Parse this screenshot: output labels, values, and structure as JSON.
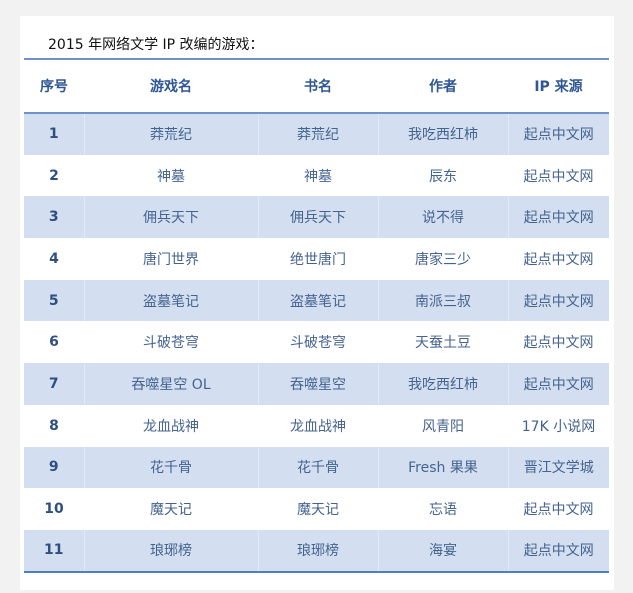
{
  "title": "2015 年网络文学 IP 改编的游戏：",
  "colors": {
    "header_text": "#2e5694",
    "row_shade": "#d3dff0",
    "rule": "#6f93c6"
  },
  "headers": [
    "序号",
    "游戏名",
    "书名",
    "作者",
    "IP 来源"
  ],
  "rows": [
    [
      "1",
      "莽荒纪",
      "莽荒纪",
      "我吃西红柿",
      "起点中文网"
    ],
    [
      "2",
      "神墓",
      "神墓",
      "辰东",
      "起点中文网"
    ],
    [
      "3",
      "佣兵天下",
      "佣兵天下",
      "说不得",
      "起点中文网"
    ],
    [
      "4",
      "唐门世界",
      "绝世唐门",
      "唐家三少",
      "起点中文网"
    ],
    [
      "5",
      "盗墓笔记",
      "盗墓笔记",
      "南派三叔",
      "起点中文网"
    ],
    [
      "6",
      "斗破苍穹",
      "斗破苍穹",
      "天蚕土豆",
      "起点中文网"
    ],
    [
      "7",
      "吞噬星空 OL",
      "吞噬星空",
      "我吃西红柿",
      "起点中文网"
    ],
    [
      "8",
      "龙血战神",
      "龙血战神",
      "风青阳",
      "17K 小说网"
    ],
    [
      "9",
      "花千骨",
      "花千骨",
      "Fresh 果果",
      "晋江文学城"
    ],
    [
      "10",
      "魔天记",
      "魔天记",
      "忘语",
      "起点中文网"
    ],
    [
      "11",
      "琅琊榜",
      "琅琊榜",
      "海宴",
      "起点中文网"
    ]
  ]
}
